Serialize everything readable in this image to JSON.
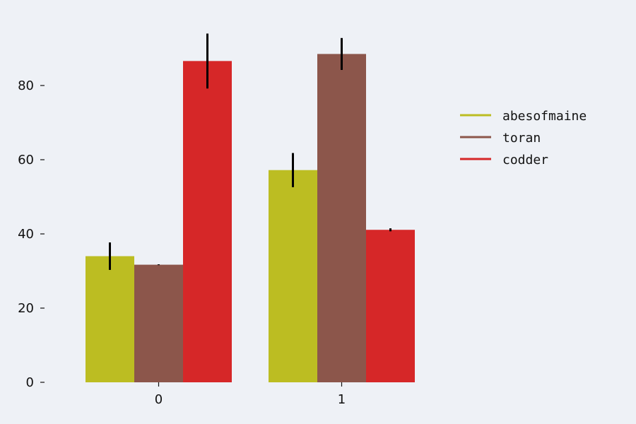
{
  "chart_data": {
    "type": "bar",
    "title": "",
    "xlabel": "",
    "ylabel": "",
    "categories": [
      "0",
      "1"
    ],
    "ylim": [
      0,
      100
    ],
    "yticks": [
      0,
      20,
      40,
      60,
      80
    ],
    "grid": false,
    "legend_position": "right",
    "series": [
      {
        "name": "abesofmaine",
        "color": "#bcbd22",
        "values": [
          34,
          57.2
        ],
        "errors": [
          3.7,
          4.6
        ]
      },
      {
        "name": "toran",
        "color": "#8c564b",
        "values": [
          31.7,
          88.5
        ],
        "errors": [
          0.1,
          4.3
        ]
      },
      {
        "name": "codder",
        "color": "#d62728",
        "values": [
          86.6,
          41.1
        ],
        "errors": [
          7.4,
          0.4
        ]
      }
    ]
  }
}
